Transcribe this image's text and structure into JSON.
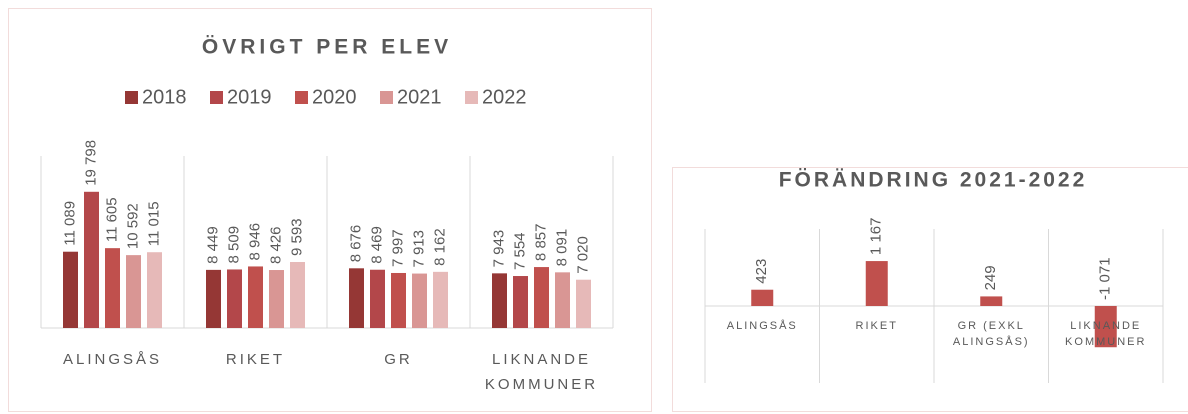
{
  "chart_data": [
    {
      "type": "bar",
      "title": "ÖVRIGT PER ELEV",
      "categories": [
        "ALINGSÅS",
        "RIKET",
        "GR",
        "LIKNANDE KOMMUNER"
      ],
      "series": [
        {
          "name": "2018",
          "color": "#953735",
          "values": [
            11089,
            8449,
            8676,
            7943
          ],
          "value_labels": [
            "11 089",
            "8 449",
            "8 676",
            "7 943"
          ]
        },
        {
          "name": "2019",
          "color": "#b3474a",
          "values": [
            19798,
            8509,
            8469,
            7554
          ],
          "value_labels": [
            "19 798",
            "8 509",
            "8 469",
            "7 554"
          ]
        },
        {
          "name": "2020",
          "color": "#c0504d",
          "values": [
            11605,
            8946,
            7997,
            8857
          ],
          "value_labels": [
            "11 605",
            "8 946",
            "7 997",
            "8 857"
          ]
        },
        {
          "name": "2021",
          "color": "#d99694",
          "values": [
            10592,
            8426,
            7913,
            8091
          ],
          "value_labels": [
            "10 592",
            "8 426",
            "7 913",
            "8 091"
          ]
        },
        {
          "name": "2022",
          "color": "#e6b9b8",
          "values": [
            11015,
            9593,
            8162,
            7020
          ],
          "value_labels": [
            "11 015",
            "9 593",
            "8 162",
            "7 020"
          ]
        }
      ],
      "ylim": [
        0,
        25000
      ],
      "legend": "top"
    },
    {
      "type": "bar",
      "title": "FÖRÄNDRING 2021-2022",
      "categories": [
        "ALINGSÅS",
        "RIKET",
        "GR (EXKL ALINGSÅS)",
        "LIKNANDE KOMMUNER"
      ],
      "values": [
        423,
        1167,
        249,
        -1071
      ],
      "value_labels": [
        "423",
        "1 167",
        "249",
        "-1 071"
      ],
      "color": "#c0504d",
      "ylim": [
        -2000,
        2000
      ]
    }
  ]
}
